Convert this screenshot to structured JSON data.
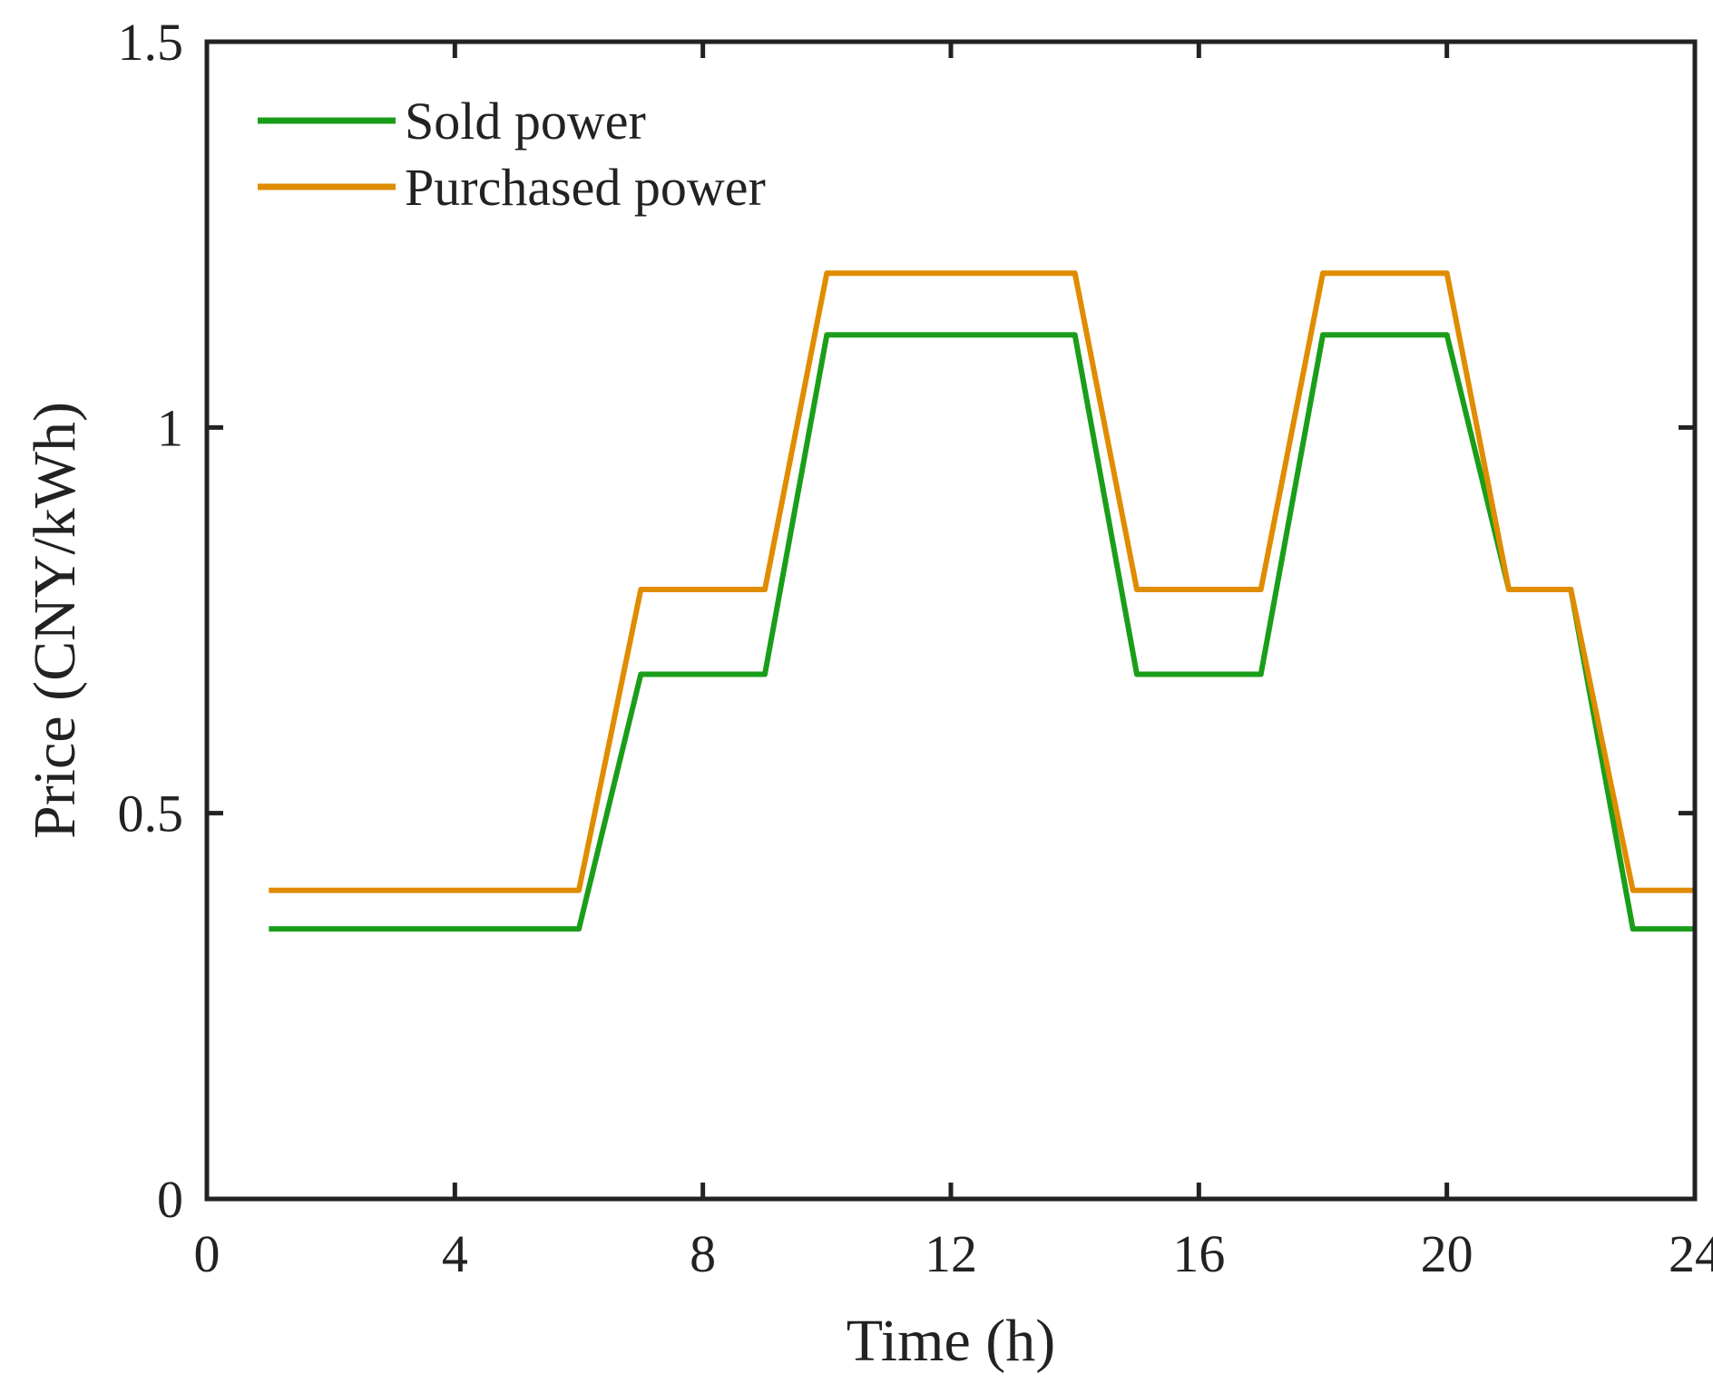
{
  "chart_data": {
    "type": "line",
    "title": "",
    "xlabel": "Time (h)",
    "ylabel": "Price (CNY/kWh)",
    "xlim": [
      0,
      24
    ],
    "ylim": [
      0,
      1.5
    ],
    "xticks": [
      0,
      4,
      8,
      12,
      16,
      20,
      24
    ],
    "yticks": [
      0,
      0.5,
      1,
      1.5
    ],
    "xtick_labels": [
      "0",
      "4",
      "8",
      "12",
      "16",
      "20",
      "24"
    ],
    "ytick_labels": [
      "0",
      "0.5",
      "1",
      "1.5"
    ],
    "grid": false,
    "legend_position": "top-left",
    "x": [
      1,
      2,
      3,
      4,
      5,
      6,
      7,
      8,
      9,
      10,
      11,
      12,
      13,
      14,
      15,
      16,
      17,
      18,
      19,
      20,
      21,
      22,
      23,
      24
    ],
    "series": [
      {
        "name": "Sold power",
        "color": "#1a9e1a",
        "values": [
          0.35,
          0.35,
          0.35,
          0.35,
          0.35,
          0.35,
          0.68,
          0.68,
          0.68,
          1.12,
          1.12,
          1.12,
          1.12,
          1.12,
          0.68,
          0.68,
          0.68,
          1.12,
          1.12,
          1.12,
          0.79,
          0.79,
          0.35,
          0.35
        ]
      },
      {
        "name": "Purchased power",
        "color": "#e08c00",
        "values": [
          0.4,
          0.4,
          0.4,
          0.4,
          0.4,
          0.4,
          0.79,
          0.79,
          0.79,
          1.2,
          1.2,
          1.2,
          1.2,
          1.2,
          0.79,
          0.79,
          0.79,
          1.2,
          1.2,
          1.2,
          0.79,
          0.79,
          0.4,
          0.4
        ]
      }
    ]
  }
}
